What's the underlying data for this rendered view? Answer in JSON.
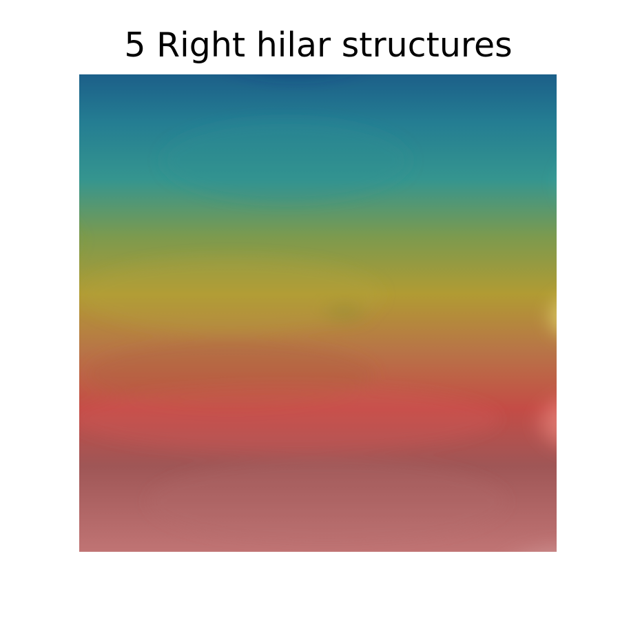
{
  "figure": {
    "title": "5 Right hilar structures"
  },
  "colors": {
    "background": "#ffffff",
    "title_text": "#000000",
    "image_top_left": "#1f6a8f",
    "image_top_center": "#0e2e78",
    "image_top_right": "#6464c8",
    "image_upper_mid_right": "#5fd6d6",
    "image_mid_left": "#9a9a2e",
    "image_mid_right_highlight": "#f1ee7d",
    "image_lower_mid_left": "#a54b31",
    "image_lower_mid_right": "#f4907f",
    "image_bottom_left": "#6f3f42",
    "image_bottom_right": "#d49b9b"
  }
}
